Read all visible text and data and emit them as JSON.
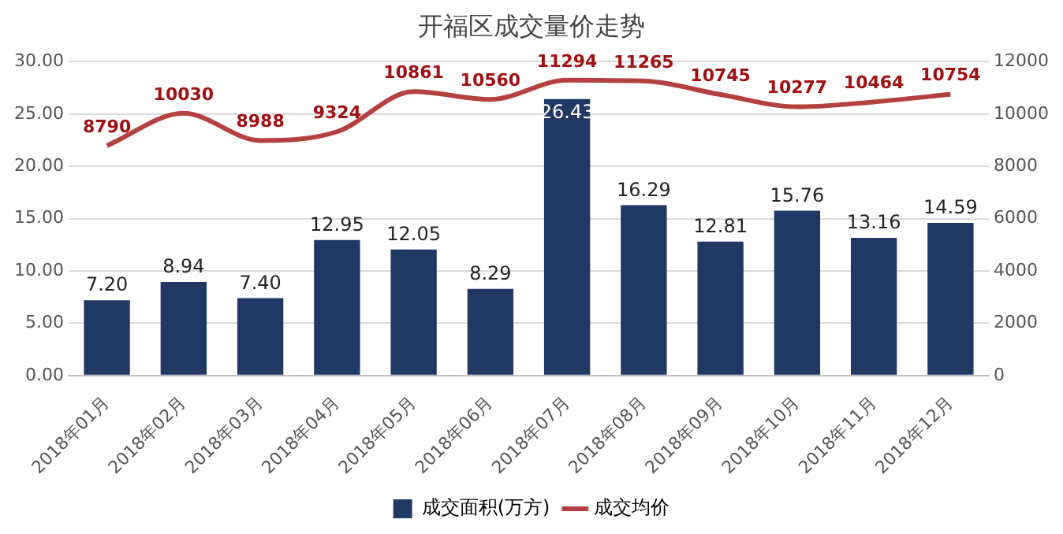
{
  "chart_data": {
    "type": "bar",
    "title": "开福区成交量价走势",
    "categories": [
      "2018年01月",
      "2018年02月",
      "2018年03月",
      "2018年04月",
      "2018年05月",
      "2018年06月",
      "2018年07月",
      "2018年08月",
      "2018年09月",
      "2018年10月",
      "2018年11月",
      "2018年12月"
    ],
    "series": [
      {
        "name": "成交面积(万方)",
        "color": "#203864",
        "values": [
          7.2,
          8.94,
          7.4,
          12.95,
          12.05,
          8.29,
          26.43,
          16.29,
          12.81,
          15.76,
          13.16,
          14.59
        ],
        "value_labels": [
          "7.20",
          "8.94",
          "7.40",
          "12.95",
          "12.05",
          "8.29",
          "26.43",
          "16.29",
          "12.81",
          "15.76",
          "13.16",
          "14.59"
        ]
      },
      {
        "name": "成交均价",
        "type": "line",
        "axis": "y2",
        "color": "#b5413e",
        "values": [
          8790,
          10030,
          8988,
          9324,
          10861,
          10560,
          11294,
          11265,
          10745,
          10277,
          10464,
          10754
        ],
        "value_labels": [
          "8790",
          "10030",
          "8988",
          "9324",
          "10861",
          "10560",
          "11294",
          "11265",
          "10745",
          "10277",
          "10464",
          "10754"
        ]
      }
    ],
    "ylim": [
      0,
      30
    ],
    "yticks": [
      {
        "value": 0,
        "label": "0.00"
      },
      {
        "value": 5,
        "label": "5.00"
      },
      {
        "value": 10,
        "label": "10.00"
      },
      {
        "value": 15,
        "label": "15.00"
      },
      {
        "value": 20,
        "label": "20.00"
      },
      {
        "value": 25,
        "label": "25.00"
      },
      {
        "value": 30,
        "label": "30.00"
      }
    ],
    "y2lim": [
      0,
      12000
    ],
    "y2ticks": [
      0,
      2000,
      4000,
      6000,
      8000,
      10000,
      12000
    ],
    "grid": "y",
    "legend": "bottom",
    "marker": "none",
    "line_style": "solid"
  }
}
